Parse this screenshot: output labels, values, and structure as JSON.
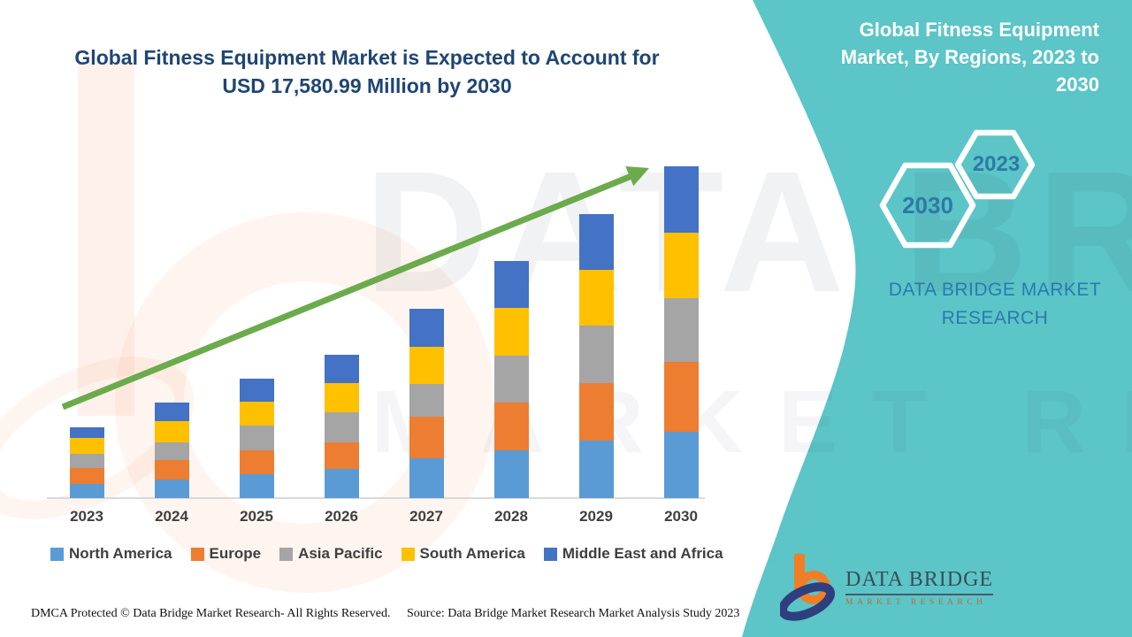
{
  "colors": {
    "teal_panel": "#5BC5C7",
    "title_navy": "#1F4573",
    "arrow_green": "#6BAB4C",
    "hex_year_blue": "#2E79A6",
    "brand_blue": "#2B7BAE",
    "axis_gray": "#D9D9D9",
    "label_gray": "#3F3F3F",
    "logo_orange": "#F07E26",
    "logo_navy": "#2E3F7F"
  },
  "header": {
    "title": "Global Fitness Equipment Market is Expected to Account for USD 17,580.99 Million by 2030"
  },
  "sidebar": {
    "title": "Global Fitness Equipment Market, By Regions, 2023 to 2030",
    "hexagons": [
      {
        "label": "2030"
      },
      {
        "label": "2023"
      }
    ],
    "brand": "DATA BRIDGE MARKET RESEARCH"
  },
  "watermarks": {
    "text_large": "DATA BRIDGE",
    "text_small": "MARKET RESEARCH"
  },
  "logo": {
    "icon": "data-bridge-b-icon",
    "name": "DATA BRIDGE",
    "sub": "MARKET RESEARCH"
  },
  "footer": {
    "left": "DMCA Protected © Data Bridge Market Research- All Rights Reserved.",
    "right": "Source: Data Bridge Market Research Market Analysis Study 2023"
  },
  "chart_data": {
    "type": "bar",
    "stacked": true,
    "title": "Global Fitness Equipment Market is Expected to Account for USD 17,580.99 Million by 2030",
    "units": "USD Million",
    "xlabel": "",
    "ylabel": "",
    "y_axis_shown": false,
    "ylim": [
      0,
      18000
    ],
    "legend_position": "bottom",
    "categories": [
      "2023",
      "2024",
      "2025",
      "2026",
      "2027",
      "2028",
      "2029",
      "2030"
    ],
    "series": [
      {
        "name": "North America",
        "color": "#5B9BD5",
        "values": [
          750,
          970,
          1265,
          1535,
          2095,
          2530,
          3035,
          3520
        ]
      },
      {
        "name": "Europe",
        "color": "#ED7D31",
        "values": [
          830,
          1065,
          1280,
          1440,
          2235,
          2545,
          3065,
          3705
        ]
      },
      {
        "name": "Asia Pacific",
        "color": "#A5A5A5",
        "values": [
          765,
          905,
          1280,
          1560,
          1720,
          2455,
          3035,
          3375
        ]
      },
      {
        "name": "South America",
        "color": "#FFC000",
        "values": [
          830,
          1140,
          1265,
          1560,
          1955,
          2530,
          2970,
          3470
        ]
      },
      {
        "name": "Middle East and Africa",
        "color": "#4472C4",
        "values": [
          580,
          1000,
          1235,
          1500,
          2030,
          2500,
          2965,
          3511
        ]
      }
    ],
    "totals": [
      3755,
      5080,
      6325,
      7595,
      10035,
      12560,
      15070,
      17581
    ],
    "highlight_value": "USD 17,580.99 Million",
    "trend_arrow": "upward"
  }
}
